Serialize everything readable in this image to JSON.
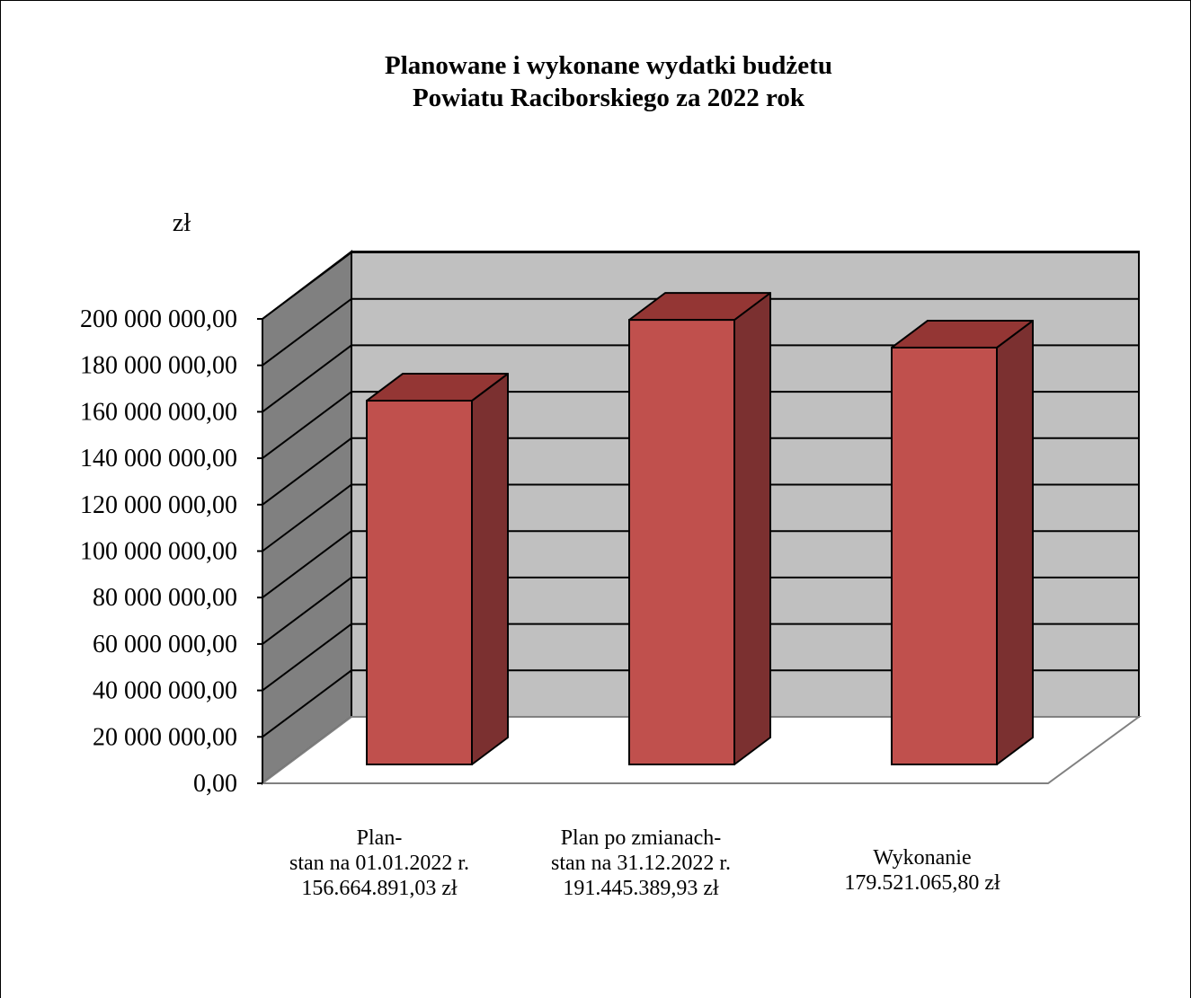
{
  "chart_data": {
    "type": "bar",
    "title": [
      "Planowane i wykonane wydatki budżetu",
      "Powiatu Raciborskiego za 2022 rok"
    ],
    "ylabel": "zł",
    "categories": [
      [
        "Plan-",
        "stan na 01.01.2022 r.",
        "156.664.891,03 zł"
      ],
      [
        "Plan po zmianach-",
        "stan na 31.12.2022 r.",
        "191.445.389,93 zł"
      ],
      [
        "Wykonanie",
        "179.521.065,80 zł"
      ]
    ],
    "values": [
      156664891.03,
      191445389.93,
      179521065.8
    ],
    "ylim": [
      0,
      200000000
    ],
    "yticks": [
      0,
      20000000,
      40000000,
      60000000,
      80000000,
      100000000,
      120000000,
      140000000,
      160000000,
      180000000,
      200000000
    ],
    "ytick_labels": [
      "0,00",
      "20 000 000,00",
      "40 000 000,00",
      "60 000 000,00",
      "80 000 000,00",
      "100 000 000,00",
      "120 000 000,00",
      "140 000 000,00",
      "160 000 000,00",
      "180 000 000,00",
      "200 000 000,00"
    ],
    "grid": true,
    "three_d": true,
    "colors": {
      "bar_front": "#c0504d",
      "bar_top": "#943634",
      "bar_side": "#7b3030",
      "back_wall": "#c0c0c0",
      "side_wall": "#808080",
      "floor": "#ffffff"
    }
  }
}
